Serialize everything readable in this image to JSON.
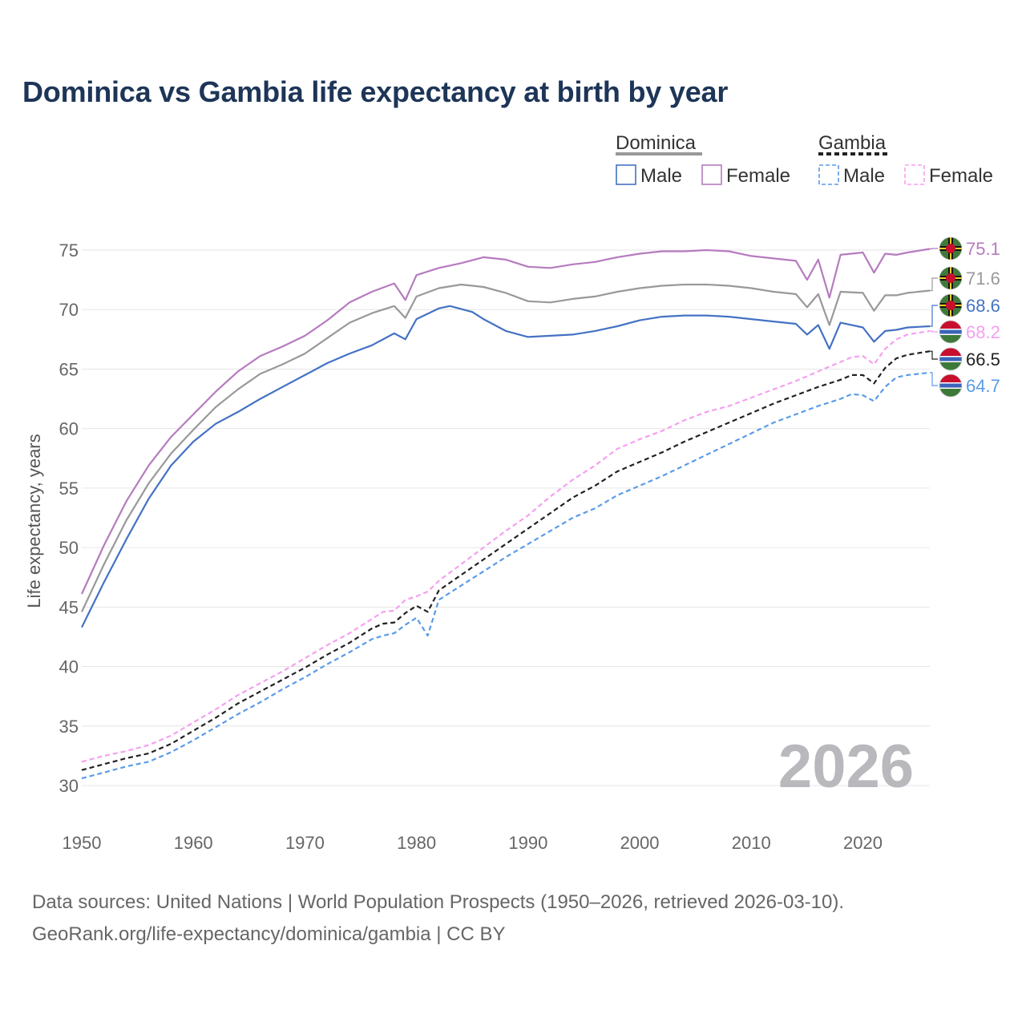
{
  "chart_data": {
    "type": "line",
    "title": "Dominica vs Gambia life expectancy at birth by year",
    "xlabel": "",
    "ylabel": "Life expectancy, years",
    "xlim": [
      1950,
      2026
    ],
    "ylim": [
      30,
      75
    ],
    "yticks": [
      30,
      35,
      40,
      45,
      50,
      55,
      60,
      65,
      70,
      75
    ],
    "xticks": [
      1950,
      1960,
      1970,
      1980,
      1990,
      2000,
      2010,
      2020
    ],
    "grid": true,
    "watermark_year": "2026",
    "legend": {
      "groups": [
        {
          "name": "Dominica",
          "style": "solid",
          "color": "#999999",
          "entries": [
            {
              "label": "Male",
              "color": "#4472c4"
            },
            {
              "label": "Female",
              "color": "#b67bbf"
            }
          ]
        },
        {
          "name": "Gambia",
          "style": "dashed",
          "color": "#222222",
          "entries": [
            {
              "label": "Male",
              "color": "#5a9be8"
            },
            {
              "label": "Female",
              "color": "#f59ff0"
            }
          ]
        }
      ]
    },
    "series": [
      {
        "name": "Dominica Female",
        "country": "dominica",
        "color": "#b67bbf",
        "dash": false,
        "end_label": "75.1",
        "points": [
          [
            1950,
            46.1
          ],
          [
            1952,
            50.2
          ],
          [
            1954,
            53.9
          ],
          [
            1956,
            56.9
          ],
          [
            1958,
            59.3
          ],
          [
            1960,
            61.2
          ],
          [
            1962,
            63.1
          ],
          [
            1964,
            64.8
          ],
          [
            1966,
            66.1
          ],
          [
            1968,
            66.9
          ],
          [
            1970,
            67.8
          ],
          [
            1972,
            69.1
          ],
          [
            1974,
            70.6
          ],
          [
            1976,
            71.5
          ],
          [
            1978,
            72.2
          ],
          [
            1979,
            70.8
          ],
          [
            1980,
            72.9
          ],
          [
            1982,
            73.5
          ],
          [
            1984,
            73.9
          ],
          [
            1986,
            74.4
          ],
          [
            1988,
            74.2
          ],
          [
            1990,
            73.6
          ],
          [
            1992,
            73.5
          ],
          [
            1994,
            73.8
          ],
          [
            1996,
            74.0
          ],
          [
            1998,
            74.4
          ],
          [
            2000,
            74.7
          ],
          [
            2002,
            74.9
          ],
          [
            2004,
            74.9
          ],
          [
            2006,
            75.0
          ],
          [
            2008,
            74.9
          ],
          [
            2010,
            74.5
          ],
          [
            2012,
            74.3
          ],
          [
            2014,
            74.1
          ],
          [
            2015,
            72.5
          ],
          [
            2016,
            74.2
          ],
          [
            2017,
            71.0
          ],
          [
            2018,
            74.6
          ],
          [
            2020,
            74.8
          ],
          [
            2021,
            73.1
          ],
          [
            2022,
            74.7
          ],
          [
            2023,
            74.6
          ],
          [
            2024,
            74.8
          ],
          [
            2026,
            75.1
          ]
        ]
      },
      {
        "name": "Dominica Total",
        "country": "dominica",
        "color": "#999999",
        "dash": false,
        "end_label": "71.6",
        "points": [
          [
            1950,
            44.6
          ],
          [
            1952,
            48.6
          ],
          [
            1954,
            52.3
          ],
          [
            1956,
            55.4
          ],
          [
            1958,
            57.9
          ],
          [
            1960,
            59.9
          ],
          [
            1962,
            61.8
          ],
          [
            1964,
            63.3
          ],
          [
            1966,
            64.6
          ],
          [
            1968,
            65.4
          ],
          [
            1970,
            66.3
          ],
          [
            1972,
            67.6
          ],
          [
            1974,
            68.9
          ],
          [
            1976,
            69.7
          ],
          [
            1978,
            70.3
          ],
          [
            1979,
            69.3
          ],
          [
            1980,
            71.1
          ],
          [
            1982,
            71.8
          ],
          [
            1984,
            72.1
          ],
          [
            1986,
            71.9
          ],
          [
            1988,
            71.4
          ],
          [
            1990,
            70.7
          ],
          [
            1992,
            70.6
          ],
          [
            1994,
            70.9
          ],
          [
            1996,
            71.1
          ],
          [
            1998,
            71.5
          ],
          [
            2000,
            71.8
          ],
          [
            2002,
            72.0
          ],
          [
            2004,
            72.1
          ],
          [
            2006,
            72.1
          ],
          [
            2008,
            72.0
          ],
          [
            2010,
            71.8
          ],
          [
            2012,
            71.5
          ],
          [
            2014,
            71.3
          ],
          [
            2015,
            70.2
          ],
          [
            2016,
            71.3
          ],
          [
            2017,
            68.7
          ],
          [
            2018,
            71.5
          ],
          [
            2020,
            71.4
          ],
          [
            2021,
            69.9
          ],
          [
            2022,
            71.2
          ],
          [
            2023,
            71.2
          ],
          [
            2024,
            71.4
          ],
          [
            2026,
            71.6
          ]
        ]
      },
      {
        "name": "Dominica Male",
        "country": "dominica",
        "color": "#4472c4",
        "dash": false,
        "end_label": "68.6",
        "points": [
          [
            1950,
            43.3
          ],
          [
            1952,
            47.1
          ],
          [
            1954,
            50.7
          ],
          [
            1956,
            54.1
          ],
          [
            1958,
            56.9
          ],
          [
            1960,
            58.9
          ],
          [
            1962,
            60.4
          ],
          [
            1964,
            61.4
          ],
          [
            1966,
            62.5
          ],
          [
            1968,
            63.5
          ],
          [
            1970,
            64.5
          ],
          [
            1972,
            65.5
          ],
          [
            1974,
            66.3
          ],
          [
            1976,
            67.0
          ],
          [
            1978,
            68.0
          ],
          [
            1979,
            67.5
          ],
          [
            1980,
            69.2
          ],
          [
            1982,
            70.1
          ],
          [
            1983,
            70.3
          ],
          [
            1985,
            69.8
          ],
          [
            1986,
            69.2
          ],
          [
            1988,
            68.2
          ],
          [
            1990,
            67.7
          ],
          [
            1992,
            67.8
          ],
          [
            1994,
            67.9
          ],
          [
            1996,
            68.2
          ],
          [
            1998,
            68.6
          ],
          [
            2000,
            69.1
          ],
          [
            2002,
            69.4
          ],
          [
            2004,
            69.5
          ],
          [
            2006,
            69.5
          ],
          [
            2008,
            69.4
          ],
          [
            2010,
            69.2
          ],
          [
            2012,
            69.0
          ],
          [
            2014,
            68.8
          ],
          [
            2015,
            67.9
          ],
          [
            2016,
            68.7
          ],
          [
            2017,
            66.7
          ],
          [
            2018,
            68.9
          ],
          [
            2020,
            68.5
          ],
          [
            2021,
            67.3
          ],
          [
            2022,
            68.2
          ],
          [
            2023,
            68.3
          ],
          [
            2024,
            68.5
          ],
          [
            2026,
            68.6
          ]
        ]
      },
      {
        "name": "Gambia Female",
        "country": "gambia",
        "color": "#f59ff0",
        "dash": true,
        "end_label": "68.2",
        "points": [
          [
            1950,
            32.0
          ],
          [
            1952,
            32.5
          ],
          [
            1954,
            32.9
          ],
          [
            1956,
            33.4
          ],
          [
            1958,
            34.2
          ],
          [
            1960,
            35.3
          ],
          [
            1962,
            36.4
          ],
          [
            1964,
            37.6
          ],
          [
            1966,
            38.6
          ],
          [
            1968,
            39.6
          ],
          [
            1970,
            40.7
          ],
          [
            1972,
            41.8
          ],
          [
            1974,
            42.8
          ],
          [
            1976,
            44.0
          ],
          [
            1977,
            44.6
          ],
          [
            1978,
            44.7
          ],
          [
            1979,
            45.6
          ],
          [
            1980,
            45.9
          ],
          [
            1981,
            46.3
          ],
          [
            1982,
            47.2
          ],
          [
            1984,
            48.6
          ],
          [
            1986,
            50.0
          ],
          [
            1988,
            51.4
          ],
          [
            1990,
            52.7
          ],
          [
            1992,
            54.3
          ],
          [
            1994,
            55.7
          ],
          [
            1996,
            56.9
          ],
          [
            1998,
            58.3
          ],
          [
            2000,
            59.1
          ],
          [
            2002,
            59.8
          ],
          [
            2004,
            60.7
          ],
          [
            2006,
            61.4
          ],
          [
            2008,
            61.9
          ],
          [
            2010,
            62.6
          ],
          [
            2012,
            63.3
          ],
          [
            2014,
            64.0
          ],
          [
            2016,
            64.8
          ],
          [
            2018,
            65.6
          ],
          [
            2019,
            66.0
          ],
          [
            2020,
            66.1
          ],
          [
            2021,
            65.4
          ],
          [
            2022,
            66.7
          ],
          [
            2023,
            67.5
          ],
          [
            2024,
            67.9
          ],
          [
            2026,
            68.2
          ]
        ]
      },
      {
        "name": "Gambia Total",
        "country": "gambia",
        "color": "#222222",
        "dash": true,
        "end_label": "66.5",
        "points": [
          [
            1950,
            31.3
          ],
          [
            1952,
            31.8
          ],
          [
            1954,
            32.3
          ],
          [
            1956,
            32.7
          ],
          [
            1958,
            33.5
          ],
          [
            1960,
            34.6
          ],
          [
            1962,
            35.7
          ],
          [
            1964,
            36.9
          ],
          [
            1966,
            37.9
          ],
          [
            1968,
            38.9
          ],
          [
            1970,
            39.9
          ],
          [
            1972,
            41.0
          ],
          [
            1974,
            42.0
          ],
          [
            1976,
            43.2
          ],
          [
            1977,
            43.6
          ],
          [
            1978,
            43.7
          ],
          [
            1979,
            44.5
          ],
          [
            1980,
            45.1
          ],
          [
            1981,
            44.6
          ],
          [
            1982,
            46.4
          ],
          [
            1984,
            47.7
          ],
          [
            1986,
            49.0
          ],
          [
            1988,
            50.3
          ],
          [
            1990,
            51.6
          ],
          [
            1992,
            52.9
          ],
          [
            1994,
            54.2
          ],
          [
            1996,
            55.2
          ],
          [
            1998,
            56.4
          ],
          [
            2000,
            57.2
          ],
          [
            2002,
            58.0
          ],
          [
            2004,
            58.9
          ],
          [
            2006,
            59.7
          ],
          [
            2008,
            60.5
          ],
          [
            2010,
            61.3
          ],
          [
            2012,
            62.1
          ],
          [
            2014,
            62.8
          ],
          [
            2016,
            63.5
          ],
          [
            2018,
            64.1
          ],
          [
            2019,
            64.5
          ],
          [
            2020,
            64.5
          ],
          [
            2021,
            63.8
          ],
          [
            2022,
            65.1
          ],
          [
            2023,
            65.9
          ],
          [
            2024,
            66.2
          ],
          [
            2026,
            66.5
          ]
        ]
      },
      {
        "name": "Gambia Male",
        "country": "gambia",
        "color": "#5a9be8",
        "dash": true,
        "end_label": "64.7",
        "points": [
          [
            1950,
            30.6
          ],
          [
            1952,
            31.1
          ],
          [
            1954,
            31.6
          ],
          [
            1956,
            32.0
          ],
          [
            1958,
            32.8
          ],
          [
            1960,
            33.8
          ],
          [
            1962,
            34.9
          ],
          [
            1964,
            36.0
          ],
          [
            1966,
            37.0
          ],
          [
            1968,
            38.1
          ],
          [
            1970,
            39.1
          ],
          [
            1972,
            40.2
          ],
          [
            1974,
            41.2
          ],
          [
            1976,
            42.3
          ],
          [
            1977,
            42.6
          ],
          [
            1978,
            42.8
          ],
          [
            1979,
            43.5
          ],
          [
            1980,
            44.1
          ],
          [
            1981,
            42.6
          ],
          [
            1982,
            45.6
          ],
          [
            1984,
            46.8
          ],
          [
            1986,
            48.0
          ],
          [
            1988,
            49.2
          ],
          [
            1990,
            50.3
          ],
          [
            1992,
            51.4
          ],
          [
            1994,
            52.5
          ],
          [
            1996,
            53.3
          ],
          [
            1998,
            54.4
          ],
          [
            2000,
            55.2
          ],
          [
            2002,
            56.0
          ],
          [
            2004,
            56.9
          ],
          [
            2006,
            57.8
          ],
          [
            2008,
            58.7
          ],
          [
            2010,
            59.6
          ],
          [
            2012,
            60.5
          ],
          [
            2014,
            61.2
          ],
          [
            2016,
            61.9
          ],
          [
            2018,
            62.5
          ],
          [
            2019,
            62.9
          ],
          [
            2020,
            62.8
          ],
          [
            2021,
            62.3
          ],
          [
            2022,
            63.5
          ],
          [
            2023,
            64.3
          ],
          [
            2024,
            64.5
          ],
          [
            2026,
            64.7
          ]
        ]
      }
    ]
  },
  "source": {
    "line1": "Data sources: United Nations | World Population Prospects (1950–2026, retrieved 2026-03-10).",
    "line2": "GeoRank.org/life-expectancy/dominica/gambia | CC BY"
  },
  "colors": {
    "title": "#1d3557",
    "grid": "#e6e6e6",
    "tick": "#666666",
    "watermark": "#b8b8bd"
  }
}
